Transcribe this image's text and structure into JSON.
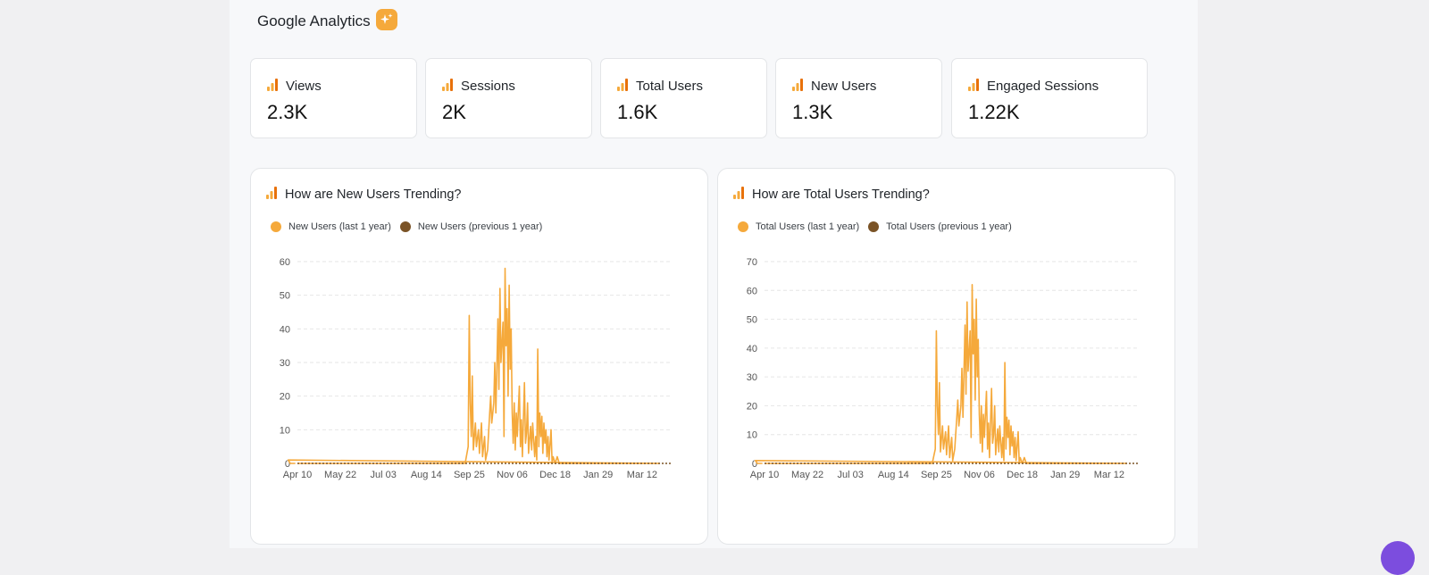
{
  "header": {
    "title": "Google Analytics",
    "badge_icon": "sparkle-icon",
    "badge_color": "#f5a93b"
  },
  "colors": {
    "accent": "#f5a93b",
    "previous": "#7a5326"
  },
  "metrics": [
    {
      "label": "Views",
      "value": "2.3K"
    },
    {
      "label": "Sessions",
      "value": "2K"
    },
    {
      "label": "Total Users",
      "value": "1.6K"
    },
    {
      "label": "New Users",
      "value": "1.3K"
    },
    {
      "label": "Engaged Sessions",
      "value": "1.22K"
    }
  ],
  "charts": [
    {
      "title": "How are New Users Trending?",
      "legend": [
        "New Users (last 1 year)",
        "New Users (previous 1 year)"
      ]
    },
    {
      "title": "How are Total Users Trending?",
      "legend": [
        "Total Users (last 1 year)",
        "Total Users (previous 1 year)"
      ]
    }
  ],
  "chart_data": [
    {
      "type": "line",
      "title": "How are New Users Trending?",
      "x_ticks": [
        "Apr 10",
        "May 22",
        "Jul 03",
        "Aug 14",
        "Sep 25",
        "Nov 06",
        "Dec 18",
        "Jan 29",
        "Mar 12"
      ],
      "ylim": [
        0,
        60
      ],
      "y_ticks": [
        0,
        10,
        20,
        30,
        40,
        50,
        60
      ],
      "grid": true,
      "legend_position": "top-left",
      "series": [
        {
          "name": "New Users (last 1 year)",
          "color": "#f5a93b",
          "points": [
            [
              "Apr 10",
              0
            ],
            [
              "Sep 21",
              0
            ],
            [
              "Sep 24",
              5
            ],
            [
              "Sep 25",
              44
            ],
            [
              "Sep 26",
              18
            ],
            [
              "Sep 27",
              8
            ],
            [
              "Sep 28",
              26
            ],
            [
              "Sep 29",
              4
            ],
            [
              "Oct 01",
              12
            ],
            [
              "Oct 02",
              5
            ],
            [
              "Oct 04",
              10
            ],
            [
              "Oct 05",
              3
            ],
            [
              "Oct 07",
              12
            ],
            [
              "Oct 08",
              2
            ],
            [
              "Oct 10",
              8
            ],
            [
              "Oct 11",
              1
            ],
            [
              "Oct 13",
              4
            ],
            [
              "Oct 15",
              15
            ],
            [
              "Oct 16",
              20
            ],
            [
              "Oct 17",
              12
            ],
            [
              "Oct 19",
              18
            ],
            [
              "Oct 20",
              30
            ],
            [
              "Oct 21",
              15
            ],
            [
              "Oct 23",
              43
            ],
            [
              "Oct 24",
              22
            ],
            [
              "Oct 25",
              52
            ],
            [
              "Oct 26",
              30
            ],
            [
              "Oct 28",
              42
            ],
            [
              "Oct 29",
              8
            ],
            [
              "Oct 30",
              58
            ],
            [
              "Oct 31",
              35
            ],
            [
              "Nov 01",
              46
            ],
            [
              "Nov 02",
              20
            ],
            [
              "Nov 03",
              53
            ],
            [
              "Nov 04",
              28
            ],
            [
              "Nov 05",
              40
            ],
            [
              "Nov 06",
              15
            ],
            [
              "Nov 07",
              6
            ],
            [
              "Nov 08",
              18
            ],
            [
              "Nov 09",
              4
            ],
            [
              "Nov 10",
              15
            ],
            [
              "Nov 11",
              8
            ],
            [
              "Nov 13",
              23
            ],
            [
              "Nov 14",
              5
            ],
            [
              "Nov 15",
              13
            ],
            [
              "Nov 16",
              2
            ],
            [
              "Nov 18",
              24
            ],
            [
              "Nov 19",
              6
            ],
            [
              "Nov 20",
              9
            ],
            [
              "Nov 21",
              18
            ],
            [
              "Nov 22",
              3
            ],
            [
              "Nov 24",
              11
            ],
            [
              "Nov 25",
              4
            ],
            [
              "Nov 26",
              12
            ],
            [
              "Nov 28",
              2
            ],
            [
              "Nov 29",
              8
            ],
            [
              "Nov 30",
              1
            ],
            [
              "Dec 01",
              34
            ],
            [
              "Dec 02",
              5
            ],
            [
              "Dec 03",
              15
            ],
            [
              "Dec 04",
              8
            ],
            [
              "Dec 05",
              14
            ],
            [
              "Dec 06",
              3
            ],
            [
              "Dec 07",
              12
            ],
            [
              "Dec 08",
              6
            ],
            [
              "Dec 09",
              10
            ],
            [
              "Dec 10",
              2
            ],
            [
              "Dec 11",
              8
            ],
            [
              "Dec 12",
              1
            ],
            [
              "Dec 14",
              10
            ],
            [
              "Dec 15",
              0
            ],
            [
              "Dec 16",
              2
            ],
            [
              "Dec 18",
              0
            ],
            [
              "Dec 20",
              2
            ],
            [
              "Dec 22",
              0
            ],
            [
              "Mar 29",
              0
            ],
            [
              "Apr 01",
              1
            ],
            [
              "Apr 03",
              0
            ],
            [
              "Apr 08",
              0
            ]
          ]
        },
        {
          "name": "New Users (previous 1 year)",
          "color": "#7a5326",
          "constant": 0
        }
      ]
    },
    {
      "type": "line",
      "title": "How are Total Users Trending?",
      "x_ticks": [
        "Apr 10",
        "May 22",
        "Jul 03",
        "Aug 14",
        "Sep 25",
        "Nov 06",
        "Dec 18",
        "Jan 29",
        "Mar 12"
      ],
      "ylim": [
        0,
        70
      ],
      "y_ticks": [
        0,
        10,
        20,
        30,
        40,
        50,
        60,
        70
      ],
      "grid": true,
      "legend_position": "top-left",
      "series": [
        {
          "name": "Total Users (last 1 year)",
          "color": "#f5a93b",
          "points": [
            [
              "Apr 10",
              0
            ],
            [
              "Sep 21",
              0
            ],
            [
              "Sep 24",
              5
            ],
            [
              "Sep 25",
              46
            ],
            [
              "Sep 26",
              20
            ],
            [
              "Sep 27",
              10
            ],
            [
              "Sep 28",
              28
            ],
            [
              "Sep 29",
              4
            ],
            [
              "Oct 01",
              13
            ],
            [
              "Oct 02",
              5
            ],
            [
              "Oct 04",
              11
            ],
            [
              "Oct 05",
              3
            ],
            [
              "Oct 07",
              13
            ],
            [
              "Oct 08",
              2
            ],
            [
              "Oct 10",
              9
            ],
            [
              "Oct 11",
              1
            ],
            [
              "Oct 13",
              5
            ],
            [
              "Oct 15",
              16
            ],
            [
              "Oct 16",
              22
            ],
            [
              "Oct 17",
              13
            ],
            [
              "Oct 19",
              20
            ],
            [
              "Oct 20",
              33
            ],
            [
              "Oct 21",
              16
            ],
            [
              "Oct 23",
              48
            ],
            [
              "Oct 24",
              24
            ],
            [
              "Oct 25",
              56
            ],
            [
              "Oct 26",
              32
            ],
            [
              "Oct 28",
              46
            ],
            [
              "Oct 29",
              9
            ],
            [
              "Oct 30",
              62
            ],
            [
              "Oct 31",
              38
            ],
            [
              "Nov 01",
              50
            ],
            [
              "Nov 02",
              22
            ],
            [
              "Nov 03",
              57
            ],
            [
              "Nov 04",
              30
            ],
            [
              "Nov 05",
              43
            ],
            [
              "Nov 06",
              17
            ],
            [
              "Nov 07",
              7
            ],
            [
              "Nov 08",
              20
            ],
            [
              "Nov 09",
              4
            ],
            [
              "Nov 10",
              17
            ],
            [
              "Nov 11",
              9
            ],
            [
              "Nov 13",
              25
            ],
            [
              "Nov 14",
              5
            ],
            [
              "Nov 15",
              14
            ],
            [
              "Nov 16",
              2
            ],
            [
              "Nov 18",
              26
            ],
            [
              "Nov 19",
              7
            ],
            [
              "Nov 20",
              10
            ],
            [
              "Nov 21",
              20
            ],
            [
              "Nov 22",
              3
            ],
            [
              "Nov 24",
              12
            ],
            [
              "Nov 25",
              4
            ],
            [
              "Nov 26",
              13
            ],
            [
              "Nov 28",
              2
            ],
            [
              "Nov 29",
              9
            ],
            [
              "Nov 30",
              1
            ],
            [
              "Dec 01",
              35
            ],
            [
              "Dec 02",
              5
            ],
            [
              "Dec 03",
              16
            ],
            [
              "Dec 04",
              9
            ],
            [
              "Dec 05",
              15
            ],
            [
              "Dec 06",
              3
            ],
            [
              "Dec 07",
              13
            ],
            [
              "Dec 08",
              6
            ],
            [
              "Dec 09",
              11
            ],
            [
              "Dec 10",
              2
            ],
            [
              "Dec 11",
              9
            ],
            [
              "Dec 12",
              1
            ],
            [
              "Dec 14",
              11
            ],
            [
              "Dec 15",
              0
            ],
            [
              "Dec 16",
              2
            ],
            [
              "Dec 18",
              0
            ],
            [
              "Dec 20",
              2
            ],
            [
              "Dec 22",
              0
            ],
            [
              "Mar 29",
              0
            ],
            [
              "Apr 01",
              1
            ],
            [
              "Apr 03",
              0
            ],
            [
              "Apr 08",
              0
            ]
          ]
        },
        {
          "name": "Total Users (previous 1 year)",
          "color": "#7a5326",
          "constant": 0
        }
      ]
    }
  ]
}
